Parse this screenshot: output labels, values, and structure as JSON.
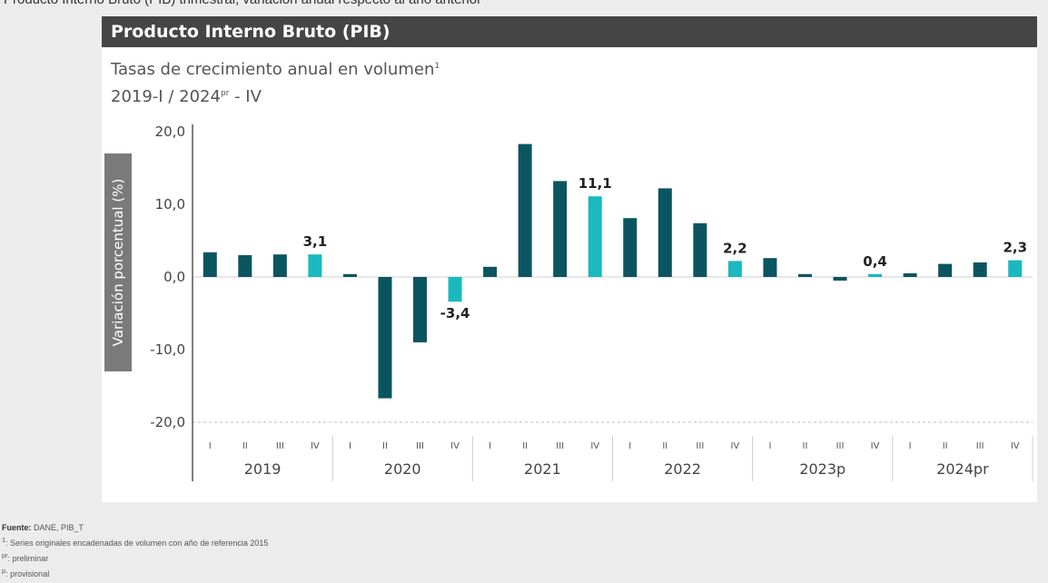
{
  "page": {
    "top_caption": "Producto Interno Bruto (PIB) trimestral, variación anual respecto al año anterior"
  },
  "header": {
    "title": "Producto Interno Bruto (PIB)",
    "subtitle_line1": "Tasas de crecimiento anual en volumen",
    "subtitle_line1_sup": "1",
    "subtitle_line2_a": "2019-I / 2024",
    "subtitle_line2_sup": "pr",
    "subtitle_line2_b": " - IV"
  },
  "chart_data": {
    "type": "bar",
    "ylabel": "Variación porcentual (%)",
    "ylim": [
      -20,
      20
    ],
    "yticks": [
      "20,0",
      "10,0",
      "0,0",
      "-10,0",
      "-20,0"
    ],
    "ytick_values": [
      20,
      10,
      0,
      -10,
      -20
    ],
    "quarters": [
      "I",
      "II",
      "III",
      "IV"
    ],
    "groups": [
      "2019",
      "2020",
      "2021",
      "2022",
      "2023p",
      "2024pr"
    ],
    "values": [
      3.4,
      3.0,
      3.1,
      3.1,
      0.4,
      -16.7,
      -9.0,
      -3.4,
      1.4,
      18.3,
      13.2,
      11.1,
      8.1,
      12.2,
      7.4,
      2.2,
      2.6,
      0.4,
      -0.5,
      0.4,
      0.5,
      1.8,
      2.0,
      2.3
    ],
    "data_labels": [
      "",
      "",
      "",
      "3,1",
      "",
      "",
      "",
      "-3,4",
      "",
      "",
      "",
      "11,1",
      "",
      "",
      "",
      "2,2",
      "",
      "",
      "",
      "0,4",
      "",
      "",
      "",
      "2,3"
    ],
    "colors": {
      "q1_q3": "#0b5561",
      "q4": "#1bb8c0",
      "grid": "#bbbbbb",
      "axis": "#555555"
    },
    "grid": "dashed-bottom"
  },
  "footer": {
    "source_label": "Fuente:",
    "source_text": " DANE, PIB_T",
    "note1_mark": "1",
    "note1_text": ": Series originales encadenadas de volumen con año de referencia 2015",
    "note2_mark": "pr",
    "note2_text": ": preliminar",
    "note3_mark": "p",
    "note3_text": ": provisional"
  }
}
